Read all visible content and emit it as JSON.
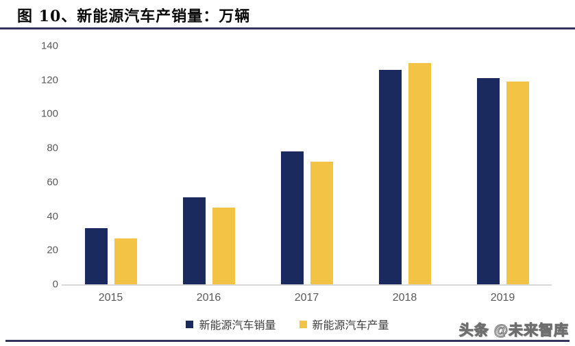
{
  "header": {
    "title": "图 10、新能源汽车产销量：万辆"
  },
  "watermark": "头条 @未来智库",
  "colors": {
    "sales_bar": "#1A2A5E",
    "production_bar": "#F2C344",
    "rule": "#33335C",
    "axis_text": "#595959",
    "baseline": "#D8D8D8"
  },
  "chart_data": {
    "type": "bar",
    "title": "图 10、新能源汽车产销量：万辆",
    "unit": "万辆",
    "categories": [
      "2015",
      "2016",
      "2017",
      "2018",
      "2019"
    ],
    "series": [
      {
        "name": "新能源汽车销量",
        "color": "#1A2A5E",
        "values": [
          33,
          51,
          78,
          126,
          121
        ]
      },
      {
        "name": "新能源汽车产量",
        "color": "#F2C344",
        "values": [
          27,
          45,
          72,
          130,
          119
        ]
      }
    ],
    "xlabel": "",
    "ylabel": "",
    "ylim": [
      0,
      140
    ],
    "yticks": [
      0,
      20,
      40,
      60,
      80,
      100,
      120,
      140
    ],
    "grid": false,
    "legend_position": "bottom"
  }
}
